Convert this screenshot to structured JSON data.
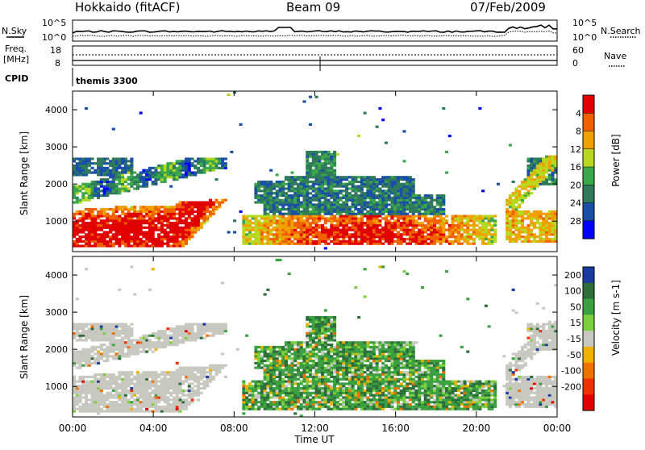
{
  "header": {
    "title": "Hokkaido (fitACF)",
    "beam": "Beam 09",
    "date": "07/Feb/2009"
  },
  "top_panel": {
    "left_label": "N.Sky",
    "left_ticks": [
      "10^5",
      "10^0"
    ],
    "right_ticks": [
      "10^5",
      "10^0"
    ],
    "right_label": "N.Search"
  },
  "freq_panel": {
    "left_label_line1": "Freq.",
    "left_label_line2": "[MHz]",
    "left_ticks": [
      "18",
      "8"
    ],
    "right_ticks": [
      "60",
      "0"
    ],
    "right_label": "Nave"
  },
  "cpid": {
    "label": "CPID",
    "value": "themis 3300"
  },
  "chart_data": [
    {
      "type": "heatmap",
      "title": "",
      "ylabel": "Slant Range [km]",
      "xlabel": "",
      "y_ticks": [
        "1000",
        "2000",
        "3000",
        "4000"
      ],
      "ylim": [
        180,
        4500
      ],
      "xlim": [
        0,
        24
      ],
      "colorbar": {
        "label": "Power [dB]",
        "ticks": [
          "4",
          "8",
          "12",
          "16",
          "20",
          "24",
          "28"
        ],
        "colors": [
          "#0000ff",
          "#1a4fa8",
          "#2f7a5a",
          "#3aa84a",
          "#b8d820",
          "#f0a000",
          "#f06000",
          "#e00000"
        ]
      }
    },
    {
      "type": "heatmap",
      "title": "",
      "ylabel": "Slant Range [km]",
      "xlabel": "Time UT",
      "y_ticks": [
        "1000",
        "2000",
        "3000",
        "4000"
      ],
      "x_ticks": [
        "00:00",
        "04:00",
        "08:00",
        "12:00",
        "16:00",
        "20:00",
        "00:00"
      ],
      "ylim": [
        180,
        4500
      ],
      "xlim": [
        0,
        24
      ],
      "colorbar": {
        "label": "Velocity [m s-1]",
        "ticks": [
          "200",
          "100",
          "50",
          "15",
          "-15",
          "-50",
          "-100",
          "-200"
        ],
        "colors": [
          "#1a3aa0",
          "#2d6e3a",
          "#3aa040",
          "#7cd040",
          "#c8c8c0",
          "#f0b000",
          "#f07000",
          "#f03000",
          "#e00000"
        ]
      }
    }
  ]
}
